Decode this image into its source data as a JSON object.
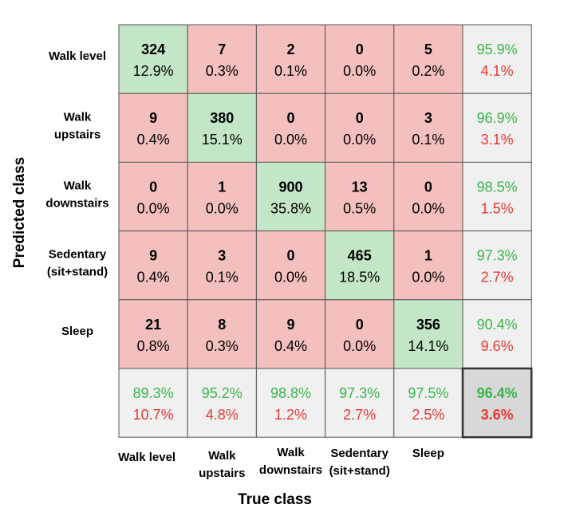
{
  "chart_data": {
    "type": "heatmap",
    "title": "",
    "xlabel": "True class",
    "ylabel": "Predicted class",
    "classes": [
      [
        "Walk level"
      ],
      [
        "Walk",
        "upstairs"
      ],
      [
        "Walk",
        "downstairs"
      ],
      [
        "Sedentary",
        "(sit+stand)"
      ],
      [
        "Sleep"
      ]
    ],
    "matrix": [
      [
        324,
        7,
        2,
        0,
        5
      ],
      [
        9,
        380,
        0,
        0,
        3
      ],
      [
        0,
        1,
        900,
        13,
        0
      ],
      [
        9,
        3,
        0,
        465,
        1
      ],
      [
        21,
        8,
        9,
        0,
        356
      ]
    ],
    "matrix_percent": [
      [
        "12.9%",
        "0.3%",
        "0.1%",
        "0.0%",
        "0.2%"
      ],
      [
        "0.4%",
        "15.1%",
        "0.0%",
        "0.0%",
        "0.1%"
      ],
      [
        "0.0%",
        "0.0%",
        "35.8%",
        "0.5%",
        "0.0%"
      ],
      [
        "0.4%",
        "0.1%",
        "0.0%",
        "18.5%",
        "0.0%"
      ],
      [
        "0.8%",
        "0.3%",
        "0.4%",
        "0.0%",
        "14.1%"
      ]
    ],
    "row_summary": [
      [
        "95.9%",
        "4.1%"
      ],
      [
        "96.9%",
        "3.1%"
      ],
      [
        "98.5%",
        "1.5%"
      ],
      [
        "97.3%",
        "2.7%"
      ],
      [
        "90.4%",
        "9.6%"
      ]
    ],
    "col_summary": [
      [
        "89.3%",
        "10.7%"
      ],
      [
        "95.2%",
        "4.8%"
      ],
      [
        "98.8%",
        "1.2%"
      ],
      [
        "97.3%",
        "2.7%"
      ],
      [
        "97.5%",
        "2.5%"
      ]
    ],
    "overall": [
      "96.4%",
      "3.6%"
    ]
  },
  "colors": {
    "correct": "#c2e6c7",
    "incorrect": "#f4bfbf",
    "summary": "#f0f0f0",
    "overall": "#d8d8d8",
    "good_text": "#3ab54a",
    "bad_text": "#e53935"
  }
}
